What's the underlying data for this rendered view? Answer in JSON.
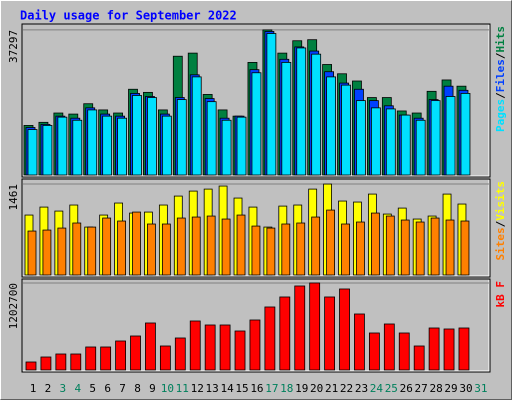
{
  "title": "Daily usage for September 2022",
  "legend_separator": "/",
  "chart_data": [
    {
      "type": "bar",
      "ylim": [
        0,
        38300
      ],
      "yticks": [
        37297
      ],
      "legend_order": [
        2,
        1,
        0
      ],
      "series": [
        {
          "name": "Hits",
          "color": "#008040",
          "values": [
            12740,
            13540,
            15930,
            15660,
            18320,
            16730,
            15930,
            22040,
            21240,
            16730,
            30530,
            31330,
            20710,
            16730,
            15130,
            28940,
            37297,
            31330,
            34510,
            34780,
            28410,
            26020,
            24160,
            19910,
            19910,
            16460,
            15930,
            21510,
            24430,
            22830,
            null
          ]
        },
        {
          "name": "Files",
          "color": "#0040ff",
          "values": [
            12210,
            13010,
            15130,
            14600,
            17260,
            15660,
            15130,
            20970,
            20180,
            15660,
            19910,
            25750,
            19650,
            14600,
            15130,
            27080,
            36900,
            29740,
            32920,
            31860,
            26550,
            23630,
            22040,
            19120,
            17790,
            15400,
            14600,
            19380,
            22830,
            21770,
            null
          ]
        },
        {
          "name": "Pages",
          "color": "#00e0ff",
          "values": [
            11680,
            12740,
            14870,
            14070,
            16730,
            15130,
            14600,
            20440,
            19910,
            15130,
            19380,
            25220,
            18850,
            14070,
            14870,
            26280,
            36370,
            28940,
            32660,
            31060,
            25220,
            23100,
            19120,
            17260,
            16990,
            15400,
            14070,
            19120,
            20180,
            20970,
            null
          ]
        }
      ]
    },
    {
      "type": "bar",
      "ylim": [
        0,
        1510
      ],
      "yticks": [
        1461
      ],
      "legend_order": [
        1,
        0
      ],
      "series": [
        {
          "name": "Visits",
          "color": "#ffff00",
          "values": [
            963,
            1091,
            1027,
            1124,
            770,
            963,
            1156,
            995,
            1011,
            1124,
            1268,
            1348,
            1380,
            1429,
            1236,
            1091,
            770,
            1107,
            1124,
            1380,
            1461,
            1188,
            1172,
            1300,
            979,
            1075,
            899,
            947,
            1300,
            1140,
            null
          ]
        },
        {
          "name": "Sites",
          "color": "#ff8000",
          "values": [
            706,
            722,
            754,
            835,
            770,
            915,
            867,
            1011,
            819,
            819,
            915,
            931,
            947,
            899,
            963,
            786,
            754,
            819,
            835,
            931,
            1043,
            819,
            851,
            995,
            947,
            883,
            851,
            915,
            883,
            867,
            null
          ]
        }
      ]
    },
    {
      "type": "bar",
      "ylim": [
        0,
        1230000
      ],
      "yticks": [
        1202700
      ],
      "legend_order": [
        0
      ],
      "categories": [
        "1",
        "2",
        "3",
        "4",
        "5",
        "6",
        "7",
        "8",
        "9",
        "10",
        "11",
        "12",
        "13",
        "14",
        "15",
        "16",
        "17",
        "18",
        "19",
        "20",
        "21",
        "22",
        "23",
        "24",
        "25",
        "26",
        "27",
        "28",
        "29",
        "30",
        "31"
      ],
      "label_colors": [
        "#000000",
        "#000000",
        "#00805c",
        "#00805c",
        "#000000",
        "#000000",
        "#000000",
        "#000000",
        "#000000",
        "#00805c",
        "#00805c",
        "#000000",
        "#000000",
        "#000000",
        "#000000",
        "#000000",
        "#00805c",
        "#00805c",
        "#000000",
        "#000000",
        "#000000",
        "#000000",
        "#000000",
        "#00805c",
        "#00805c",
        "#000000",
        "#000000",
        "#000000",
        "#000000",
        "#000000",
        "#00805c"
      ],
      "series": [
        {
          "name": "kB F",
          "color": "#ff0000",
          "values": [
            110600,
            179700,
            221200,
            221200,
            318000,
            318000,
            400900,
            470000,
            649700,
            331800,
            442400,
            677400,
            622100,
            622100,
            539100,
            691200,
            870900,
            1009200,
            1161200,
            1202700,
            1009200,
            1119700,
            774100,
            511500,
            635900,
            511500,
            331800,
            580600,
            566800,
            580600,
            null
          ]
        }
      ]
    }
  ]
}
